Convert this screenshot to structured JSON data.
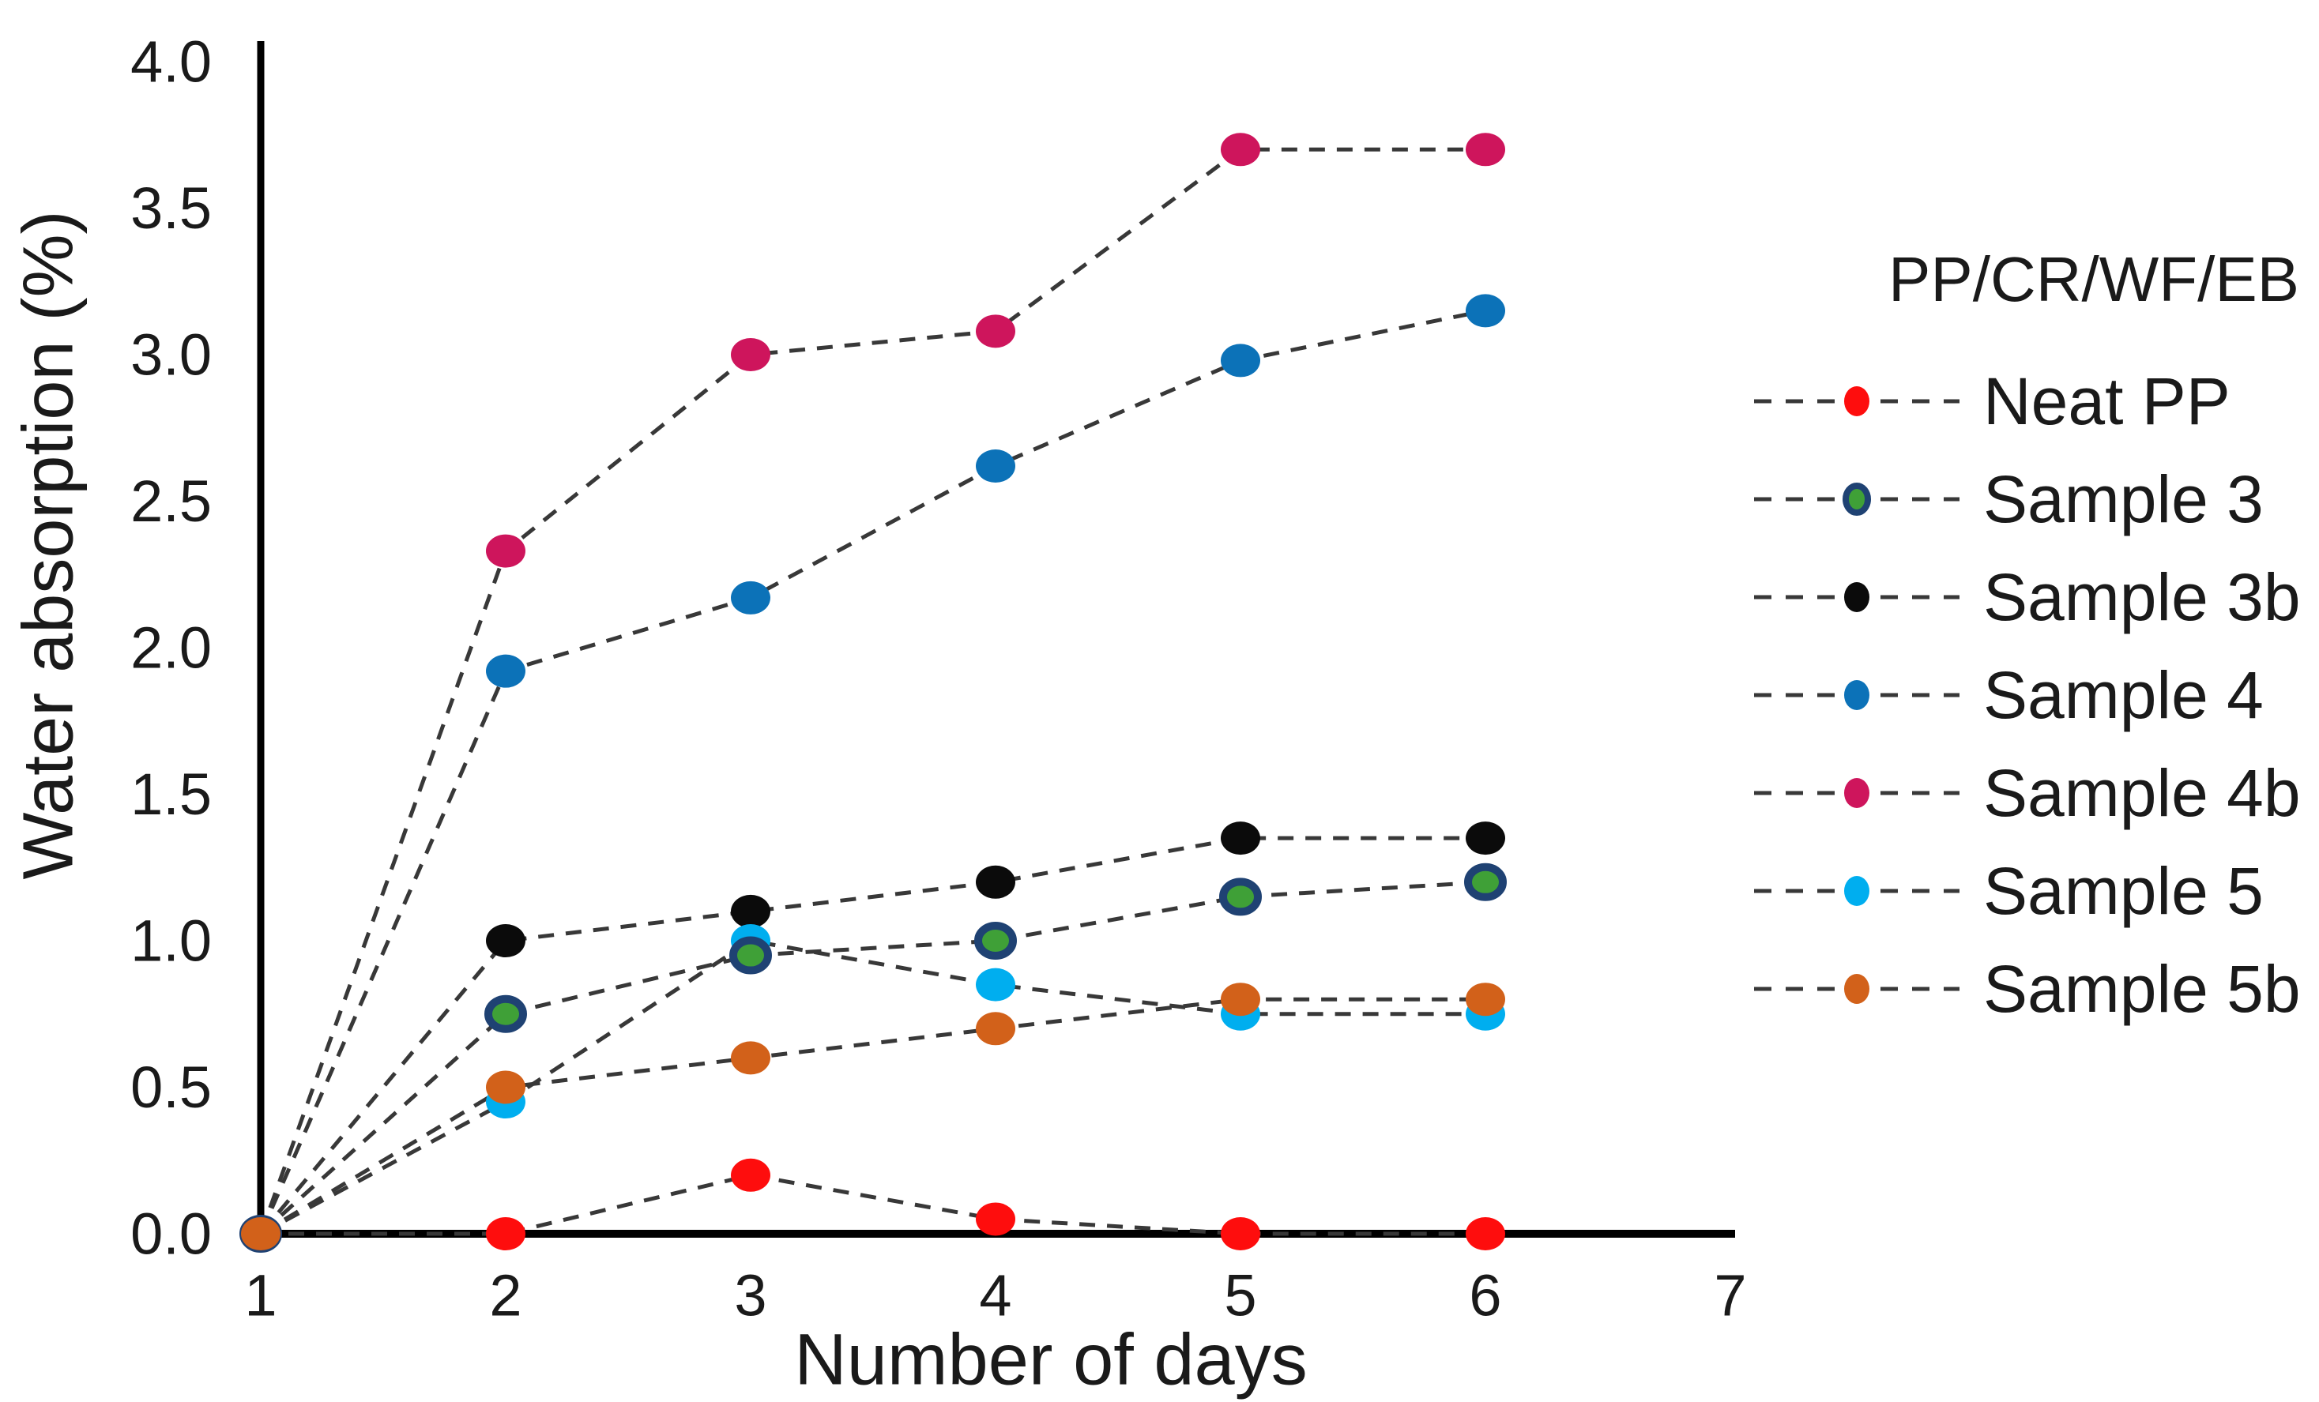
{
  "chart_data": {
    "type": "line",
    "title": "",
    "xlabel": "Number of days",
    "ylabel": "Water absorption (%)",
    "x": [
      1,
      2,
      3,
      4,
      5,
      6
    ],
    "xlim": [
      1,
      7
    ],
    "ylim": [
      0.0,
      4.0
    ],
    "x_ticks": [
      "1",
      "2",
      "3",
      "4",
      "5",
      "6",
      "7"
    ],
    "y_ticks": [
      "0.0",
      "0.5",
      "1.0",
      "1.5",
      "2.0",
      "2.5",
      "3.0",
      "3.5",
      "4.0"
    ],
    "grid": false,
    "line_style": "dashed",
    "line_color": "#383838",
    "axis_color": "#000000",
    "text_color": "#1a1a1a",
    "legend": {
      "position": "right",
      "title": "PP/CR/WF/EB"
    },
    "series": [
      {
        "name": "Neat PP",
        "color": "#FE0D0D",
        "values": [
          0,
          0,
          0.2,
          0.05,
          0,
          0
        ]
      },
      {
        "name": "Sample 3",
        "color": "#3FA037",
        "marker_edge": "#1F4273",
        "values": [
          0,
          0.75,
          0.95,
          1.0,
          1.15,
          1.2
        ]
      },
      {
        "name": "Sample 3b",
        "color": "#0B0B0B",
        "values": [
          0,
          1.0,
          1.1,
          1.2,
          1.35,
          1.35
        ]
      },
      {
        "name": "Sample 4",
        "color": "#0C72B8",
        "values": [
          0,
          1.92,
          2.17,
          2.62,
          2.98,
          3.15
        ]
      },
      {
        "name": "Sample 4b",
        "color": "#CE155C",
        "values": [
          0,
          2.33,
          3.0,
          3.08,
          3.7,
          3.7
        ]
      },
      {
        "name": "Sample 5",
        "color": "#00AEEF",
        "values": [
          0,
          0.45,
          1.0,
          0.85,
          0.75,
          0.75
        ]
      },
      {
        "name": "Sample 5b",
        "color": "#D2611A",
        "values": [
          0,
          0.5,
          0.6,
          0.7,
          0.8,
          0.8
        ]
      }
    ],
    "draw_order": [
      "Neat PP",
      "Sample 3b",
      "Sample 4",
      "Sample 4b",
      "Sample 5",
      "Sample 3",
      "Sample 5b"
    ]
  }
}
